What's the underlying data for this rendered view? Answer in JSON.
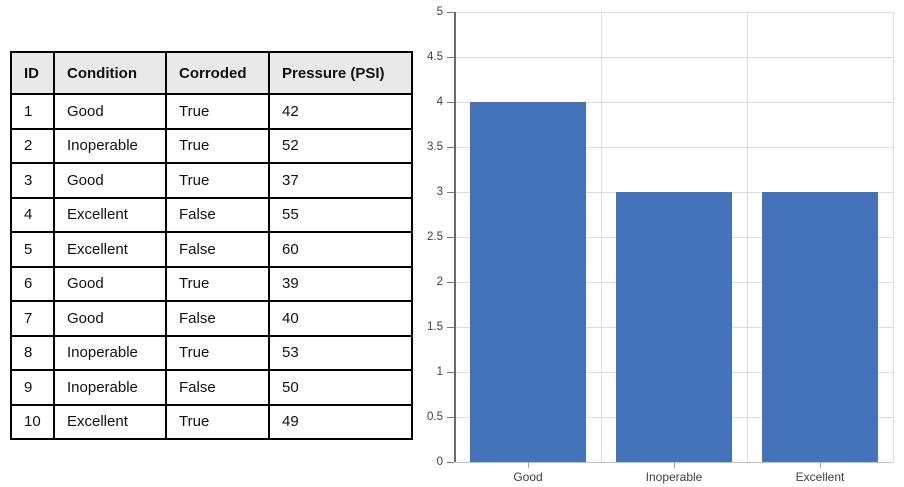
{
  "table": {
    "headers": [
      "ID",
      "Condition",
      "Corroded",
      "Pressure (PSI)"
    ],
    "rows": [
      [
        "1",
        "Good",
        "True",
        "42"
      ],
      [
        "2",
        "Inoperable",
        "True",
        "52"
      ],
      [
        "3",
        "Good",
        "True",
        "37"
      ],
      [
        "4",
        "Excellent",
        "False",
        "55"
      ],
      [
        "5",
        "Excellent",
        "False",
        "60"
      ],
      [
        "6",
        "Good",
        "True",
        "39"
      ],
      [
        "7",
        "Good",
        "False",
        "40"
      ],
      [
        "8",
        "Inoperable",
        "True",
        "53"
      ],
      [
        "9",
        "Inoperable",
        "False",
        "50"
      ],
      [
        "10",
        "Excellent",
        "True",
        "49"
      ]
    ],
    "header_bg": "#E9E9E9",
    "border_color": "#000000"
  },
  "chart_data": {
    "type": "bar",
    "categories": [
      "Good",
      "Inoperable",
      "Excellent"
    ],
    "values": [
      4,
      3,
      3
    ],
    "title": "",
    "xlabel": "",
    "ylabel": "",
    "ylim": [
      0,
      5
    ],
    "ytick_step": 0.5,
    "ytick_labels": [
      "0",
      "0.5",
      "1",
      "1.5",
      "2",
      "2.5",
      "3",
      "3.5",
      "4",
      "4.5",
      "5"
    ],
    "legend": "none",
    "grid": true,
    "bar_color": "#4473B9",
    "gridline_color": "#DBDBDB",
    "baseline_color": "#C2C2C2",
    "axis_color": "#696969",
    "tick_color": "#7C7C7C",
    "xtick_color": "#A0A0A0",
    "label_color": "#3F3F3F"
  }
}
